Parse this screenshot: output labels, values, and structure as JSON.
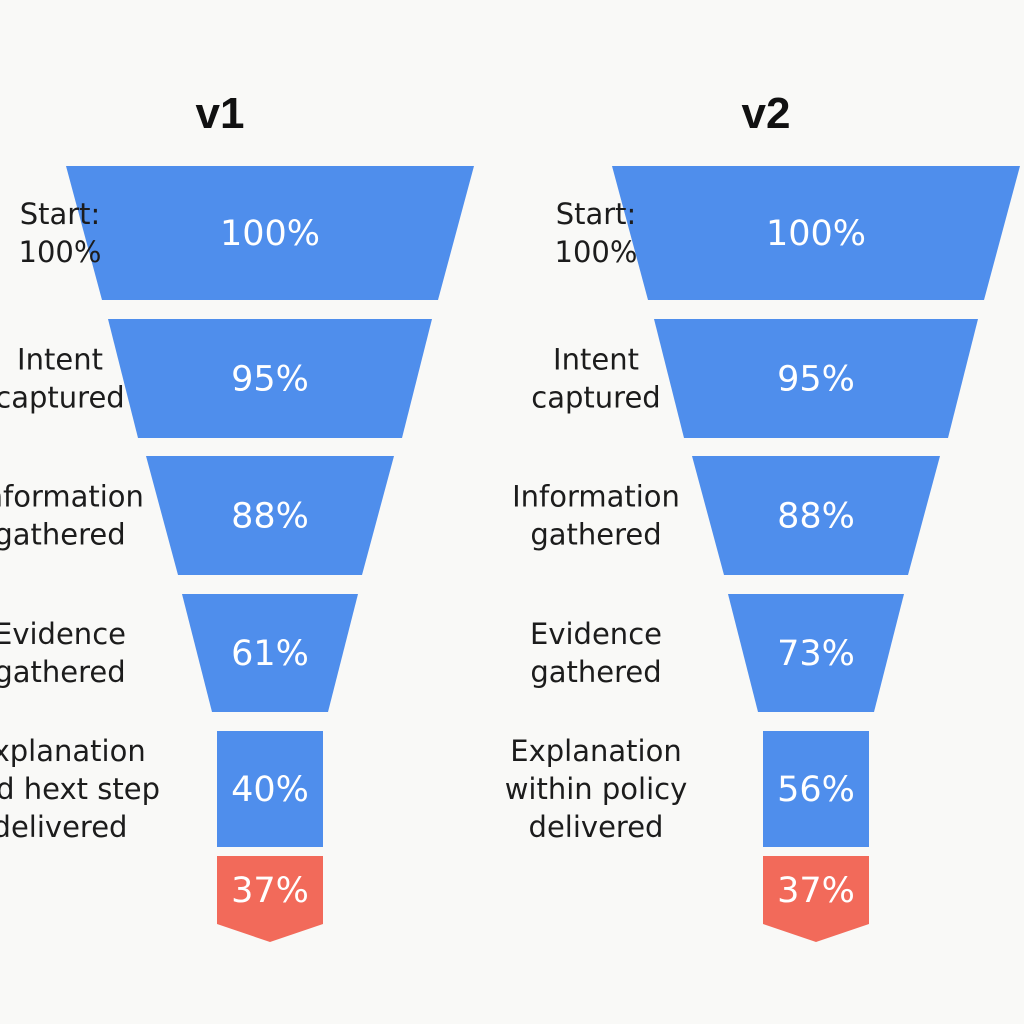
{
  "colors": {
    "stage": "#4f8eec",
    "final": "#f26a5a",
    "label": "#1c1c1c",
    "value": "#ffffff",
    "background": "#f9f9f7"
  },
  "chart_data": [
    {
      "type": "funnel",
      "title": "v1",
      "stages": [
        {
          "label": [
            "Start:",
            "100%"
          ],
          "value": 100,
          "display": "100%"
        },
        {
          "label": [
            "Intent",
            "captured"
          ],
          "value": 95,
          "display": "95%"
        },
        {
          "label": [
            "Information",
            "gathered"
          ],
          "value": 88,
          "display": "88%"
        },
        {
          "label": [
            "Evidence",
            "gathered"
          ],
          "value": 61,
          "display": "61%"
        },
        {
          "label": [
            "Explanation",
            "and hext step",
            "delivered"
          ],
          "value": 40,
          "display": "40%"
        },
        {
          "label": [],
          "value": 37,
          "display": "37%",
          "highlight": true
        }
      ]
    },
    {
      "type": "funnel",
      "title": "v2",
      "stages": [
        {
          "label": [
            "Start:",
            "100%"
          ],
          "value": 100,
          "display": "100%"
        },
        {
          "label": [
            "Intent",
            "captured"
          ],
          "value": 95,
          "display": "95%"
        },
        {
          "label": [
            "Information",
            "gathered"
          ],
          "value": 88,
          "display": "88%"
        },
        {
          "label": [
            "Evidence",
            "gathered"
          ],
          "value": 73,
          "display": "73%"
        },
        {
          "label": [
            "Explanation",
            "within policy",
            "delivered"
          ],
          "value": 56,
          "display": "56%"
        },
        {
          "label": [],
          "value": 37,
          "display": "37%",
          "highlight": true
        }
      ]
    }
  ]
}
